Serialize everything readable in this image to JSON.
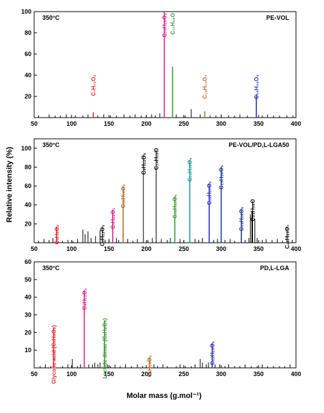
{
  "figure": {
    "ylabel": "Relative intensity (%)",
    "xlabel": "Molar mass (g.mol⁻¹)"
  },
  "colors": {
    "red": "#e8262d",
    "magenta": "#e0218a",
    "green": "#3f9a3b",
    "brown": "#b86a2e",
    "blue": "#2a2fc4",
    "black": "#000000",
    "navy": "#1f3a93",
    "teal": "#1a9a96"
  },
  "chart_data": [
    {
      "type": "bar",
      "temperature": "350°C",
      "sample": "PE-VOL",
      "xlim": [
        50,
        400
      ],
      "ylim": [
        0,
        100
      ],
      "x_ticks": [
        50,
        100,
        150,
        200,
        250,
        300,
        350,
        400
      ],
      "y_ticks": [
        20,
        40,
        60,
        80,
        100
      ],
      "annotations": [
        {
          "label": "C₇H₁₂O₂",
          "x": 129,
          "y": 100,
          "color": "red"
        },
        {
          "label": "C₁₃H₁₅O₃",
          "x": 224,
          "y": 100,
          "color": "magenta"
        },
        {
          "label": "C₁₇H₂₈O",
          "x": 235,
          "y": 100,
          "color": "green"
        },
        {
          "label": "C₁₈H₁₉O₄",
          "x": 278,
          "y": 100,
          "color": "brown"
        },
        {
          "label": "C₁₈H₃₀O₅",
          "x": 347,
          "y": 100,
          "color": "blue"
        }
      ],
      "series": [
        {
          "color": "black",
          "points": [
            [
              56,
              2
            ],
            [
              70,
              3
            ],
            [
              78,
              2
            ],
            [
              85,
              2
            ],
            [
              93,
              3
            ],
            [
              105,
              2
            ],
            [
              115,
              2
            ],
            [
              122,
              3
            ],
            [
              135,
              2
            ],
            [
              143,
              3
            ],
            [
              152,
              2
            ],
            [
              160,
              2
            ],
            [
              170,
              3
            ],
            [
              178,
              2
            ],
            [
              185,
              3
            ],
            [
              193,
              2
            ],
            [
              200,
              2
            ],
            [
              207,
              3
            ],
            [
              212,
              2
            ],
            [
              218,
              4
            ],
            [
              240,
              3
            ],
            [
              252,
              2
            ],
            [
              260,
              8
            ],
            [
              272,
              3
            ],
            [
              285,
              2
            ],
            [
              293,
              2
            ],
            [
              300,
              3
            ],
            [
              310,
              2
            ],
            [
              318,
              2
            ],
            [
              325,
              3
            ],
            [
              335,
              2
            ],
            [
              355,
              2
            ],
            [
              362,
              3
            ],
            [
              370,
              2
            ],
            [
              378,
              2
            ],
            [
              388,
              2
            ],
            [
              396,
              2
            ]
          ]
        },
        {
          "color": "red",
          "points": [
            [
              129,
              5
            ]
          ]
        },
        {
          "color": "magenta",
          "points": [
            [
              224,
              100
            ]
          ]
        },
        {
          "color": "green",
          "points": [
            [
              235,
              48
            ]
          ]
        },
        {
          "color": "brown",
          "points": [
            [
              278,
              6
            ]
          ]
        },
        {
          "color": "blue",
          "points": [
            [
              347,
              22
            ]
          ]
        }
      ]
    },
    {
      "type": "bar",
      "temperature": "350°C",
      "sample": "PE-VOL/PD,L-LGA50",
      "xlim": [
        50,
        400
      ],
      "ylim": [
        0,
        110
      ],
      "x_ticks": [
        50,
        100,
        150,
        200,
        250,
        300,
        350,
        400
      ],
      "y_ticks": [
        20,
        40,
        60,
        80,
        100
      ],
      "annotations": [
        {
          "label": "C₃H₄O₂",
          "x": 80,
          "y": 17,
          "color": "red"
        },
        {
          "label": "C₇H₁₂O₃",
          "x": 141,
          "y": 17,
          "color": "black"
        },
        {
          "label": "C₇H₁₂O₂",
          "x": 155,
          "y": 35,
          "color": "magenta"
        },
        {
          "label": "C₁₀H₁₆O₂",
          "x": 169,
          "y": 60,
          "color": "brown"
        },
        {
          "label": "C₉H₁₂O₅",
          "x": 196,
          "y": 93,
          "color": "black"
        },
        {
          "label": "C₁₄H₁₉O",
          "x": 213,
          "y": 98,
          "color": "black"
        },
        {
          "label": "C₁₀H₁₂O₅",
          "x": 238,
          "y": 49,
          "color": "green"
        },
        {
          "label": "C₁₂H₁₆O₆",
          "x": 258,
          "y": 88,
          "color": "teal"
        },
        {
          "label": "C₁₂H₁₇O₂",
          "x": 284,
          "y": 63,
          "color": "blue"
        },
        {
          "label": "C₁₅H₂₀O₅",
          "x": 300,
          "y": 80,
          "color": "navy"
        },
        {
          "label": "C₁₄H₁₈O₆",
          "x": 327,
          "y": 36,
          "color": "navy"
        },
        {
          "label": "C₂₃H₃₆O",
          "x": 342,
          "y": 44,
          "color": "black"
        },
        {
          "label": "C₂₀H₃₃O₇",
          "x": 388,
          "y": 17,
          "color": "black"
        }
      ],
      "series": [
        {
          "color": "black",
          "points": [
            [
              56,
              2
            ],
            [
              63,
              4
            ],
            [
              70,
              3
            ],
            [
              75,
              5
            ],
            [
              88,
              2
            ],
            [
              95,
              3
            ],
            [
              102,
              2
            ],
            [
              108,
              4
            ],
            [
              115,
              14
            ],
            [
              118,
              9
            ],
            [
              122,
              12
            ],
            [
              126,
              5
            ],
            [
              132,
              7
            ],
            [
              138,
              13
            ],
            [
              145,
              3
            ],
            [
              150,
              4
            ],
            [
              160,
              5
            ],
            [
              163,
              3
            ],
            [
              175,
              4
            ],
            [
              182,
              2
            ],
            [
              188,
              4
            ],
            [
              202,
              3
            ],
            [
              208,
              5
            ],
            [
              220,
              4
            ],
            [
              228,
              3
            ],
            [
              232,
              5
            ],
            [
              245,
              4
            ],
            [
              250,
              3
            ],
            [
              265,
              4
            ],
            [
              270,
              3
            ],
            [
              275,
              5
            ],
            [
              290,
              3
            ],
            [
              295,
              4
            ],
            [
              305,
              3
            ],
            [
              312,
              4
            ],
            [
              318,
              2
            ],
            [
              332,
              3
            ],
            [
              337,
              5
            ],
            [
              339,
              30
            ],
            [
              341,
              33
            ],
            [
              345,
              25
            ],
            [
              348,
              5
            ],
            [
              355,
              3
            ],
            [
              360,
              4
            ],
            [
              368,
              3
            ],
            [
              375,
              4
            ],
            [
              382,
              2
            ],
            [
              395,
              3
            ]
          ]
        },
        {
          "color": "red",
          "points": [
            [
              80,
              17
            ]
          ]
        },
        {
          "color": "black",
          "points": [
            [
              141,
              17
            ]
          ]
        },
        {
          "color": "magenta",
          "points": [
            [
              155,
              35
            ]
          ]
        },
        {
          "color": "brown",
          "points": [
            [
              169,
              60
            ]
          ]
        },
        {
          "color": "black",
          "points": [
            [
              196,
              93
            ]
          ]
        },
        {
          "color": "black",
          "points": [
            [
              213,
              98
            ]
          ]
        },
        {
          "color": "green",
          "points": [
            [
              238,
              49
            ]
          ]
        },
        {
          "color": "teal",
          "points": [
            [
              258,
              88
            ]
          ]
        },
        {
          "color": "blue",
          "points": [
            [
              284,
              63
            ]
          ]
        },
        {
          "color": "navy",
          "points": [
            [
              300,
              80
            ]
          ]
        },
        {
          "color": "navy",
          "points": [
            [
              327,
              36
            ]
          ]
        },
        {
          "color": "black",
          "points": [
            [
              342,
              44
            ]
          ]
        },
        {
          "color": "black",
          "points": [
            [
              388,
              17
            ]
          ]
        }
      ]
    },
    {
      "type": "bar",
      "temperature": "350°C",
      "sample": "PD,L-LGA",
      "xlim": [
        50,
        400
      ],
      "ylim": [
        0,
        60
      ],
      "x_ticks": [
        50,
        100,
        150,
        200,
        250,
        300,
        350,
        400
      ],
      "y_ticks": [
        10,
        20,
        30,
        40,
        50,
        60
      ],
      "annotations": [
        {
          "label": "Glycolic acid (C₂H₄O₃)",
          "x": 76,
          "y": 23,
          "color": "red"
        },
        {
          "label": "C₄H₁₂O₂",
          "x": 117,
          "y": 44,
          "color": "magenta"
        },
        {
          "label": "Lactide dimer (C₆H₈O₄)",
          "x": 144,
          "y": 27,
          "color": "green"
        },
        {
          "label": "C₉H₁₄O₆",
          "x": 204,
          "y": 6,
          "color": "brown"
        },
        {
          "label": "C₁₂H₁₆O₉",
          "x": 288,
          "y": 14,
          "color": "blue"
        }
      ],
      "series": [
        {
          "color": "black",
          "points": [
            [
              58,
              1
            ],
            [
              65,
              2
            ],
            [
              72,
              1
            ],
            [
              88,
              1
            ],
            [
              95,
              2
            ],
            [
              101,
              5
            ],
            [
              108,
              1
            ],
            [
              112,
              2
            ],
            [
              123,
              2
            ],
            [
              128,
              2
            ],
            [
              131,
              3
            ],
            [
              135,
              2
            ],
            [
              138,
              3
            ],
            [
              148,
              2
            ],
            [
              152,
              1
            ],
            [
              158,
              2
            ],
            [
              165,
              1
            ],
            [
              172,
              2
            ],
            [
              180,
              1
            ],
            [
              188,
              2
            ],
            [
              195,
              1
            ],
            [
              210,
              2
            ],
            [
              215,
              1
            ],
            [
              222,
              2
            ],
            [
              228,
              1
            ],
            [
              240,
              1
            ],
            [
              245,
              2
            ],
            [
              252,
              1
            ],
            [
              260,
              1
            ],
            [
              265,
              2
            ],
            [
              272,
              5
            ],
            [
              275,
              3
            ],
            [
              280,
              2
            ],
            [
              283,
              3
            ],
            [
              292,
              2
            ],
            [
              298,
              2
            ],
            [
              305,
              1
            ],
            [
              310,
              2
            ],
            [
              318,
              1
            ],
            [
              325,
              1
            ],
            [
              332,
              2
            ],
            [
              340,
              1
            ],
            [
              348,
              1
            ],
            [
              355,
              2
            ],
            [
              362,
              1
            ],
            [
              370,
              1
            ],
            [
              378,
              1
            ],
            [
              385,
              1
            ],
            [
              392,
              2
            ]
          ]
        },
        {
          "color": "red",
          "points": [
            [
              76,
              23
            ]
          ]
        },
        {
          "color": "magenta",
          "points": [
            [
              117,
              44
            ]
          ]
        },
        {
          "color": "green",
          "points": [
            [
              144,
              27
            ]
          ]
        },
        {
          "color": "brown",
          "points": [
            [
              204,
              6
            ]
          ]
        },
        {
          "color": "blue",
          "points": [
            [
              288,
              14
            ]
          ]
        }
      ]
    }
  ]
}
